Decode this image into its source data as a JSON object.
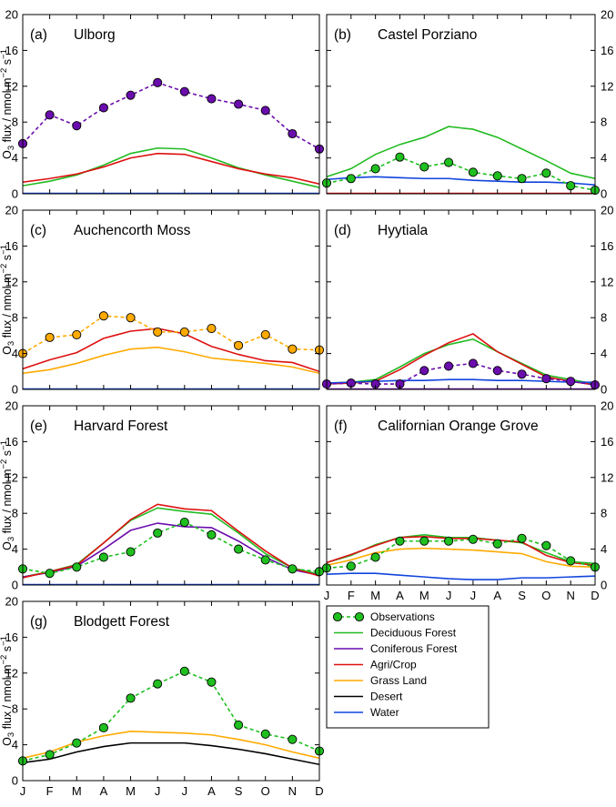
{
  "figure": {
    "months": [
      "J",
      "F",
      "M",
      "A",
      "M",
      "J",
      "J",
      "A",
      "S",
      "O",
      "N",
      "D"
    ],
    "yticks": [
      0,
      4,
      8,
      12,
      16,
      20
    ],
    "ylabel_parts": {
      "base": "O",
      "sub": "3",
      "mid": " flux / nmol m",
      "sup1": "−2",
      "gap": " s",
      "sup2": "−1"
    },
    "colors": {
      "obs_fill": "#1fbf1f",
      "Deciduous Forest": "#22bb22",
      "Coniferous Forest": "#6a0dad",
      "Agri/Crop": "#dd1111",
      "Grass Land": "#ffaa00",
      "Desert": "#000000",
      "Water": "#1144dd"
    }
  },
  "legend": {
    "items": [
      {
        "label": "Observations",
        "style": "obs",
        "color": "#1fbf1f"
      },
      {
        "label": "Deciduous Forest",
        "style": "line",
        "color": "#22bb22"
      },
      {
        "label": "Coniferous Forest",
        "style": "line",
        "color": "#6a0dad"
      },
      {
        "label": "Agri/Crop",
        "style": "line",
        "color": "#dd1111"
      },
      {
        "label": "Grass Land",
        "style": "line",
        "color": "#ffaa00"
      },
      {
        "label": "Desert",
        "style": "line",
        "color": "#000000"
      },
      {
        "label": "Water",
        "style": "line",
        "color": "#1144dd"
      }
    ]
  },
  "chart_data": [
    {
      "type": "line",
      "panel": "(a)",
      "title": "Ulborg",
      "ylim": [
        0,
        20
      ],
      "x": [
        "J",
        "F",
        "M",
        "A",
        "M",
        "J",
        "J",
        "A",
        "S",
        "O",
        "N",
        "D"
      ],
      "observations": {
        "fill": "#6a0dad",
        "values": [
          5.6,
          8.8,
          7.6,
          9.6,
          11.0,
          12.4,
          11.4,
          10.6,
          10.0,
          9.3,
          6.7,
          5.0
        ]
      },
      "series": [
        {
          "name": "Deciduous Forest",
          "values": [
            0.9,
            1.4,
            2.1,
            3.2,
            4.5,
            5.1,
            5.0,
            4.0,
            2.9,
            2.1,
            1.4,
            0.7
          ]
        },
        {
          "name": "Agri/Crop",
          "values": [
            1.3,
            1.7,
            2.2,
            3.0,
            4.0,
            4.5,
            4.4,
            3.6,
            2.8,
            2.2,
            1.8,
            1.1
          ]
        },
        {
          "name": "Water",
          "values": [
            0.05,
            0.05,
            0.05,
            0.05,
            0.05,
            0.05,
            0.05,
            0.05,
            0.05,
            0.05,
            0.05,
            0.05
          ]
        }
      ]
    },
    {
      "type": "line",
      "panel": "(b)",
      "title": "Castel Porziano",
      "ylim": [
        0,
        20
      ],
      "x": [
        "J",
        "F",
        "M",
        "A",
        "M",
        "J",
        "J",
        "A",
        "S",
        "O",
        "N",
        "D"
      ],
      "observations": {
        "fill": "#1fbf1f",
        "values": [
          1.2,
          1.7,
          2.8,
          4.1,
          3.0,
          3.5,
          2.4,
          2.0,
          1.7,
          2.3,
          0.9,
          0.4
        ]
      },
      "series": [
        {
          "name": "Deciduous Forest",
          "values": [
            1.9,
            2.8,
            4.4,
            5.5,
            6.3,
            7.5,
            7.2,
            6.3,
            5.0,
            3.7,
            2.3,
            1.7
          ]
        },
        {
          "name": "Water",
          "values": [
            1.6,
            1.8,
            1.9,
            1.8,
            1.7,
            1.7,
            1.5,
            1.4,
            1.3,
            1.3,
            1.2,
            1.0
          ]
        },
        {
          "name": "Agri/Crop",
          "values": [
            0.05,
            0.05,
            0.05,
            0.05,
            0.05,
            0.05,
            0.05,
            0.05,
            0.05,
            0.05,
            0.05,
            0.05
          ]
        }
      ]
    },
    {
      "type": "line",
      "panel": "(c)",
      "title": "Auchencorth Moss",
      "ylim": [
        0,
        20
      ],
      "x": [
        "J",
        "F",
        "M",
        "A",
        "M",
        "J",
        "J",
        "A",
        "S",
        "O",
        "N",
        "D"
      ],
      "observations": {
        "fill": "#ffaa00",
        "values": [
          4.0,
          5.8,
          6.1,
          8.2,
          8.0,
          6.4,
          6.4,
          6.8,
          4.9,
          6.1,
          4.5,
          4.4
        ]
      },
      "series": [
        {
          "name": "Agri/Crop",
          "values": [
            2.3,
            3.3,
            4.1,
            5.7,
            6.5,
            6.8,
            6.2,
            4.8,
            3.9,
            3.2,
            3.0,
            2.0
          ]
        },
        {
          "name": "Grass Land",
          "values": [
            1.8,
            2.2,
            2.9,
            3.8,
            4.5,
            4.7,
            4.2,
            3.5,
            3.2,
            2.9,
            2.5,
            1.8
          ]
        },
        {
          "name": "Water",
          "values": [
            0.05,
            0.05,
            0.05,
            0.05,
            0.05,
            0.05,
            0.05,
            0.05,
            0.05,
            0.05,
            0.05,
            0.05
          ]
        }
      ]
    },
    {
      "type": "line",
      "panel": "(d)",
      "title": "Hyytiala",
      "ylim": [
        0,
        20
      ],
      "x": [
        "J",
        "F",
        "M",
        "A",
        "M",
        "J",
        "J",
        "A",
        "S",
        "O",
        "N",
        "D"
      ],
      "observations": {
        "fill": "#6a0dad",
        "values": [
          0.6,
          0.7,
          0.6,
          0.6,
          2.1,
          2.6,
          2.9,
          2.1,
          1.7,
          1.2,
          0.9,
          0.5
        ]
      },
      "series": [
        {
          "name": "Deciduous Forest",
          "values": [
            0.7,
            0.8,
            1.1,
            2.5,
            4.0,
            5.0,
            5.6,
            4.2,
            2.9,
            1.6,
            1.1,
            0.6
          ]
        },
        {
          "name": "Agri/Crop",
          "values": [
            0.6,
            0.7,
            0.9,
            2.2,
            3.8,
            5.2,
            6.2,
            4.2,
            2.8,
            1.4,
            0.9,
            0.5
          ]
        },
        {
          "name": "Water",
          "values": [
            0.7,
            0.8,
            0.9,
            1.0,
            1.0,
            1.1,
            1.1,
            1.0,
            1.0,
            0.9,
            0.8,
            0.8
          ]
        },
        {
          "name": "Coniferous Forest",
          "values": [
            0.05,
            0.05,
            0.05,
            0.05,
            0.05,
            0.05,
            0.05,
            0.05,
            0.05,
            0.05,
            0.05,
            0.05
          ]
        }
      ]
    },
    {
      "type": "line",
      "panel": "(e)",
      "title": "Harvard Forest",
      "ylim": [
        0,
        20
      ],
      "x": [
        "J",
        "F",
        "M",
        "A",
        "M",
        "J",
        "J",
        "A",
        "S",
        "O",
        "N",
        "D"
      ],
      "observations": {
        "fill": "#1fbf1f",
        "values": [
          1.8,
          1.3,
          2.0,
          3.1,
          3.7,
          5.8,
          7.0,
          5.6,
          4.0,
          2.8,
          1.8,
          1.5
        ]
      },
      "series": [
        {
          "name": "Deciduous Forest",
          "values": [
            0.9,
            1.5,
            2.3,
            4.7,
            7.2,
            8.6,
            8.2,
            7.9,
            5.8,
            3.5,
            1.9,
            1.2
          ]
        },
        {
          "name": "Coniferous Forest",
          "values": [
            0.9,
            1.4,
            2.1,
            4.0,
            6.1,
            6.9,
            6.5,
            6.4,
            4.9,
            3.1,
            1.7,
            1.1
          ]
        },
        {
          "name": "Agri/Crop",
          "values": [
            0.8,
            1.5,
            2.2,
            4.7,
            7.3,
            9.0,
            8.5,
            8.3,
            6.0,
            3.8,
            1.9,
            1.0
          ]
        },
        {
          "name": "Water",
          "values": [
            0.05,
            0.05,
            0.05,
            0.05,
            0.05,
            0.05,
            0.05,
            0.05,
            0.05,
            0.05,
            0.05,
            0.05
          ]
        }
      ]
    },
    {
      "type": "line",
      "panel": "(f)",
      "title": "Californian Orange Grove",
      "ylim": [
        0,
        20
      ],
      "x": [
        "J",
        "F",
        "M",
        "A",
        "M",
        "J",
        "J",
        "A",
        "S",
        "O",
        "N",
        "D"
      ],
      "observations": {
        "fill": "#1fbf1f",
        "values": [
          1.9,
          2.1,
          3.1,
          4.9,
          4.9,
          4.9,
          5.1,
          4.6,
          5.2,
          4.4,
          2.7,
          2.0
        ]
      },
      "series": [
        {
          "name": "Deciduous Forest",
          "values": [
            2.5,
            3.3,
            4.5,
            5.3,
            5.6,
            5.3,
            5.3,
            5.0,
            4.7,
            3.6,
            2.6,
            2.4
          ]
        },
        {
          "name": "Agri/Crop",
          "values": [
            2.5,
            3.4,
            4.4,
            5.3,
            5.4,
            5.2,
            5.2,
            5.0,
            4.8,
            3.3,
            2.5,
            2.2
          ]
        },
        {
          "name": "Grass Land",
          "values": [
            2.2,
            2.8,
            3.6,
            4.0,
            4.1,
            4.0,
            3.9,
            3.7,
            3.5,
            2.6,
            2.1,
            2.0
          ]
        },
        {
          "name": "Water",
          "values": [
            1.2,
            1.3,
            1.3,
            1.1,
            0.9,
            0.7,
            0.6,
            0.6,
            0.8,
            0.8,
            0.9,
            1.0
          ]
        }
      ]
    },
    {
      "type": "line",
      "panel": "(g)",
      "title": "Blodgett Forest",
      "ylim": [
        0,
        20
      ],
      "x": [
        "J",
        "F",
        "M",
        "A",
        "M",
        "J",
        "J",
        "A",
        "S",
        "O",
        "N",
        "D"
      ],
      "observations": {
        "fill": "#1fbf1f",
        "values": [
          2.2,
          2.9,
          4.2,
          5.9,
          9.2,
          10.8,
          12.2,
          11.0,
          6.2,
          5.2,
          4.6,
          3.3
        ]
      },
      "series": [
        {
          "name": "Grass Land",
          "values": [
            2.5,
            3.2,
            4.3,
            5.0,
            5.5,
            5.4,
            5.3,
            5.1,
            4.6,
            4.0,
            3.2,
            2.5
          ]
        },
        {
          "name": "Desert",
          "values": [
            2.0,
            2.4,
            3.2,
            3.8,
            4.2,
            4.2,
            4.2,
            3.9,
            3.5,
            3.0,
            2.4,
            1.8
          ]
        }
      ]
    }
  ]
}
